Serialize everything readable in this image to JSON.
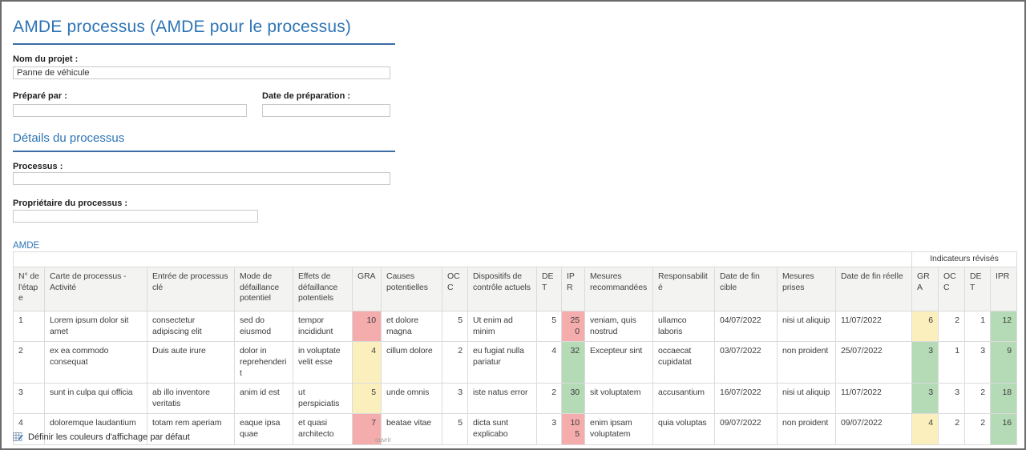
{
  "page": {
    "title": "AMDE processus (AMDE pour le processus)"
  },
  "form": {
    "project_name": {
      "label": "Nom du projet :",
      "value": "Panne de véhicule"
    },
    "prepared_by": {
      "label": "Préparé par :",
      "value": ""
    },
    "prep_date": {
      "label": "Date de préparation :",
      "value": ""
    },
    "details_heading": "Détails du processus",
    "process": {
      "label": "Processus :",
      "value": ""
    },
    "owner": {
      "label": "Propriétaire du processus :",
      "value": ""
    }
  },
  "table": {
    "section_label": "AMDE",
    "group_header": "Indicateurs révisés",
    "columns": [
      "N° de l'étape",
      "Carte de processus - Activité",
      "Entrée de processus clé",
      "Mode de défaillance potentiel",
      "Effets de défaillance potentiels",
      "GRA",
      "Causes potentielles",
      "OCC",
      "Dispositifs de contrôle actuels",
      "DET",
      "IPR",
      "Mesures recommandées",
      "Responsabilité",
      "Date de fin cible",
      "Mesures prises",
      "Date de fin réelle",
      "GRA",
      "OCC",
      "DET",
      "IPR"
    ],
    "col_keys": [
      "num",
      "activity",
      "entry",
      "mode",
      "effects",
      "gra",
      "causes",
      "occ",
      "controls",
      "det",
      "ipr",
      "recommended",
      "responsibility",
      "target_date",
      "actions_taken",
      "actual_date",
      "r_gra",
      "r_occ",
      "r_det",
      "r_ipr"
    ],
    "numeric_cols": [
      "gra",
      "occ",
      "det",
      "ipr",
      "r_gra",
      "r_occ",
      "r_det",
      "r_ipr"
    ],
    "rows": [
      {
        "num": "1",
        "activity": "Lorem ipsum dolor sit amet",
        "entry": "consectetur adipiscing elit",
        "mode": "sed do eiusmod",
        "effects": "tempor incididunt",
        "gra": {
          "v": "10",
          "bg": "red"
        },
        "causes": "et dolore magna",
        "occ": "5",
        "controls": "Ut enim ad minim",
        "det": "5",
        "ipr": {
          "v": "250",
          "bg": "red"
        },
        "recommended": "veniam, quis nostrud",
        "responsibility": "ullamco laboris",
        "target_date": "04/07/2022",
        "actions_taken": "nisi ut aliquip",
        "actual_date": "11/07/2022",
        "r_gra": {
          "v": "6",
          "bg": "yellow"
        },
        "r_occ": "2",
        "r_det": "1",
        "r_ipr": {
          "v": "12",
          "bg": "green"
        }
      },
      {
        "num": "2",
        "activity": "ex ea commodo consequat",
        "entry": "Duis aute irure",
        "mode": "dolor in reprehenderit",
        "effects": "in voluptate velit esse",
        "gra": {
          "v": "4",
          "bg": "yellow"
        },
        "causes": "cillum dolore",
        "occ": "2",
        "controls": "eu fugiat nulla pariatur",
        "det": "4",
        "ipr": {
          "v": "32",
          "bg": "green"
        },
        "recommended": "Excepteur sint",
        "responsibility": "occaecat cupidatat",
        "target_date": "03/07/2022",
        "actions_taken": "non proident",
        "actual_date": "25/07/2022",
        "r_gra": {
          "v": "3",
          "bg": "green"
        },
        "r_occ": "1",
        "r_det": "3",
        "r_ipr": {
          "v": "9",
          "bg": "green"
        }
      },
      {
        "num": "3",
        "activity": "sunt in culpa qui officia",
        "entry": "ab illo inventore veritatis",
        "mode": "anim id est",
        "effects": "ut perspiciatis",
        "gra": {
          "v": "5",
          "bg": "yellow"
        },
        "causes": "unde omnis",
        "occ": "3",
        "controls": "iste natus error",
        "det": "2",
        "ipr": {
          "v": "30",
          "bg": "green"
        },
        "recommended": "sit voluptatem",
        "responsibility": "accusantium",
        "target_date": "16/07/2022",
        "actions_taken": "nisi ut aliquip",
        "actual_date": "11/07/2022",
        "r_gra": {
          "v": "3",
          "bg": "green"
        },
        "r_occ": "3",
        "r_det": "2",
        "r_ipr": {
          "v": "18",
          "bg": "green"
        }
      },
      {
        "num": "4",
        "activity": "doloremque laudantium",
        "entry": "totam rem aperiam",
        "mode": "eaque ipsa quae",
        "effects": "et quasi architecto",
        "gra": {
          "v": "7",
          "bg": "red"
        },
        "causes": "beatae vitae",
        "occ": "5",
        "controls": "dicta sunt explicabo",
        "det": "3",
        "ipr": {
          "v": "105",
          "bg": "red"
        },
        "recommended": "enim ipsam voluptatem",
        "responsibility": "quia voluptas",
        "target_date": "09/07/2022",
        "actions_taken": "non proident",
        "actual_date": "09/07/2022",
        "r_gra": {
          "v": "4",
          "bg": "yellow"
        },
        "r_occ": "2",
        "r_det": "2",
        "r_ipr": {
          "v": "16",
          "bg": "green"
        }
      }
    ]
  },
  "footer": {
    "set_colors_label": "Définir les couleurs d'affichage par défaut",
    "open_label": "ouvrir"
  },
  "colors": {
    "red": "#f4acac",
    "yellow": "#fbf0bd",
    "green": "#b4dab6",
    "accent": "#2e74b5"
  }
}
